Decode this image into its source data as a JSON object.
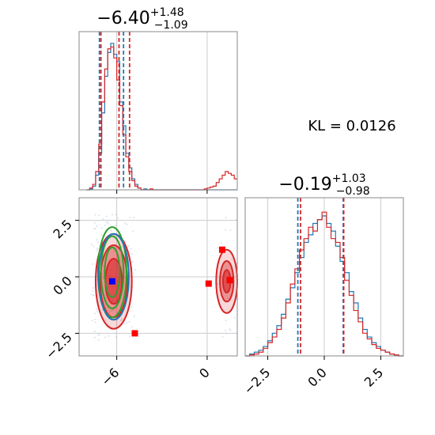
{
  "figure": {
    "top_title": {
      "value": "−6.40",
      "sup": "+1.48",
      "sub": "−1.09"
    },
    "bottom_title": {
      "value": "−0.19",
      "sup": "+1.03",
      "sub": "−0.98"
    },
    "kl_text": "KL = 0.0126"
  },
  "chart_data": [
    {
      "type": "histogram",
      "panel": "marginal-top",
      "xlim": [
        -8.5,
        2.0
      ],
      "grid": true,
      "series": [
        {
          "color": "#1f77b4",
          "bins_x": [
            -7.9,
            -7.7,
            -7.5,
            -7.3,
            -7.1,
            -6.9,
            -6.7,
            -6.5,
            -6.3,
            -6.1,
            -5.9,
            -5.7,
            -5.5,
            -5.3,
            -5.1,
            -4.9,
            -4.7,
            -4.5,
            -4.3,
            -4.1,
            -3.9,
            -3.7,
            -3.5,
            -3.3,
            -3.1,
            -2.9,
            -2.7,
            -2.5,
            -2.3,
            -2.1,
            -1.9,
            -1.7,
            -1.5,
            -1.3,
            -1.1,
            -0.9,
            -0.7,
            -0.5,
            -0.3,
            -0.1,
            0.1,
            0.3,
            0.5,
            0.7,
            0.9,
            1.1,
            1.3,
            1.5,
            1.7,
            1.9
          ],
          "counts": [
            0,
            0.5,
            2,
            8,
            20,
            42,
            62,
            75,
            80,
            74,
            70,
            48,
            35,
            20,
            12,
            6,
            3,
            1,
            0,
            0.5,
            0,
            0,
            0,
            0,
            0,
            0,
            0,
            0,
            0,
            0,
            0,
            0,
            0,
            0,
            0,
            0,
            0,
            0,
            0,
            0,
            0,
            0,
            0,
            0,
            0,
            0,
            0,
            0,
            0,
            0
          ]
        },
        {
          "color": "#d62728",
          "bins_x": [
            -7.9,
            -7.7,
            -7.5,
            -7.3,
            -7.1,
            -6.9,
            -6.7,
            -6.5,
            -6.3,
            -6.1,
            -5.9,
            -5.7,
            -5.5,
            -5.3,
            -5.1,
            -4.9,
            -4.7,
            -4.5,
            -4.3,
            -4.1,
            -3.9,
            -3.7,
            -3.5,
            -3.3,
            -3.1,
            -2.9,
            -2.7,
            -2.5,
            -2.3,
            -2.1,
            -1.9,
            -1.7,
            -1.5,
            -1.3,
            -1.1,
            -0.9,
            -0.7,
            -0.5,
            -0.3,
            -0.1,
            0.1,
            0.3,
            0.5,
            0.7,
            0.9,
            1.1,
            1.3,
            1.5,
            1.7,
            1.9
          ],
          "counts": [
            0,
            1,
            3,
            10,
            25,
            48,
            66,
            77,
            78,
            72,
            60,
            46,
            30,
            18,
            10,
            5,
            2,
            1,
            0,
            0,
            0,
            0.5,
            0,
            0,
            0,
            0,
            0,
            0,
            0,
            0,
            0,
            0,
            0,
            0,
            0,
            0,
            0,
            0,
            0,
            0.5,
            1,
            1.5,
            2,
            4,
            6,
            8,
            10,
            9,
            8,
            6
          ]
        }
      ],
      "quantile_lines": [
        {
          "x": -7.15,
          "color": "#1f77b4"
        },
        {
          "x": -5.55,
          "color": "#1f77b4"
        },
        {
          "x": -7.05,
          "color": "#d62728"
        },
        {
          "x": -5.15,
          "color": "#d62728"
        },
        {
          "x": -5.85,
          "color": "#d62728"
        }
      ]
    },
    {
      "type": "scatter",
      "panel": "joint",
      "xlim": [
        -8.5,
        2.0
      ],
      "ylim": [
        -3.5,
        3.5
      ],
      "xticks": [
        -6,
        0
      ],
      "xtick_labels": [
        "−6",
        "0"
      ],
      "yticks": [
        2.5,
        0.0,
        -2.5
      ],
      "ytick_labels": [
        "2.5",
        "0.0",
        "−2.5"
      ],
      "grid": true,
      "contours": [
        {
          "color": "#d62728",
          "cx": -6.2,
          "cy": -0.2,
          "levels_rx": [
            1.2,
            0.9,
            0.55
          ],
          "levels_ry": [
            2.1,
            1.6,
            1.0
          ]
        },
        {
          "color": "#2ca02c",
          "cx": -6.3,
          "cy": 0.2,
          "levels_rx": [
            0.95,
            0.75,
            0.5
          ],
          "levels_ry": [
            2.0,
            1.6,
            1.1
          ]
        },
        {
          "color": "#1f77b4",
          "cx": -6.2,
          "cy": 0.0,
          "levels_rx": [
            1.0
          ],
          "levels_ry": [
            1.9
          ]
        },
        {
          "color": "#d62728",
          "cx": 1.3,
          "cy": -0.2,
          "levels_rx": [
            0.7,
            0.45,
            0.25
          ],
          "levels_ry": [
            1.4,
            0.9,
            0.5
          ]
        }
      ],
      "markers": [
        {
          "x": -6.3,
          "y": -0.2,
          "color": "#0000ff"
        },
        {
          "x": 0.1,
          "y": -0.3,
          "color": "#ff0000"
        },
        {
          "x": 1.5,
          "y": -0.15,
          "color": "#ff0000"
        },
        {
          "x": 1.0,
          "y": 1.2,
          "color": "#ff0000"
        },
        {
          "x": -4.8,
          "y": -2.5,
          "color": "#ff0000"
        }
      ]
    },
    {
      "type": "histogram",
      "panel": "marginal-bottom-right",
      "xlim": [
        -3.5,
        3.5
      ],
      "xticks": [
        -2.5,
        0.0,
        2.5
      ],
      "xtick_labels": [
        "−2.5",
        "0.0",
        "2.5"
      ],
      "grid": true,
      "series": [
        {
          "color": "#1f77b4",
          "bins_x": [
            -3.4,
            -3.2,
            -3.0,
            -2.8,
            -2.6,
            -2.4,
            -2.2,
            -2.0,
            -1.8,
            -1.6,
            -1.4,
            -1.2,
            -1.0,
            -0.8,
            -0.6,
            -0.4,
            -0.2,
            0.0,
            0.2,
            0.4,
            0.6,
            0.8,
            1.0,
            1.2,
            1.4,
            1.6,
            1.8,
            2.0,
            2.2,
            2.4,
            2.6,
            2.8,
            3.0,
            3.2,
            3.4
          ],
          "counts": [
            0,
            1,
            2,
            3,
            5,
            8,
            12,
            16,
            22,
            30,
            36,
            44,
            52,
            60,
            64,
            70,
            72,
            74,
            70,
            66,
            58,
            50,
            44,
            34,
            28,
            20,
            14,
            10,
            7,
            5,
            3,
            2,
            1,
            0.5,
            0
          ]
        },
        {
          "color": "#d62728",
          "bins_x": [
            -3.4,
            -3.2,
            -3.0,
            -2.8,
            -2.6,
            -2.4,
            -2.2,
            -2.0,
            -1.8,
            -1.6,
            -1.4,
            -1.2,
            -1.0,
            -0.8,
            -0.6,
            -0.4,
            -0.2,
            0.0,
            0.2,
            0.4,
            0.6,
            0.8,
            1.0,
            1.2,
            1.4,
            1.6,
            1.8,
            2.0,
            2.2,
            2.4,
            2.6,
            2.8,
            3.0,
            3.2,
            3.4
          ],
          "counts": [
            0,
            0.5,
            1,
            2,
            4,
            7,
            10,
            14,
            20,
            28,
            38,
            46,
            56,
            62,
            68,
            66,
            72,
            76,
            68,
            62,
            60,
            52,
            40,
            32,
            24,
            18,
            12,
            9,
            6,
            4,
            3,
            2,
            1,
            0.5,
            0
          ]
        }
      ],
      "quantile_lines": [
        {
          "x": -1.17,
          "color": "#1f77b4"
        },
        {
          "x": 0.84,
          "color": "#1f77b4"
        },
        {
          "x": -1.05,
          "color": "#d62728"
        },
        {
          "x": 0.86,
          "color": "#d62728"
        }
      ]
    }
  ]
}
